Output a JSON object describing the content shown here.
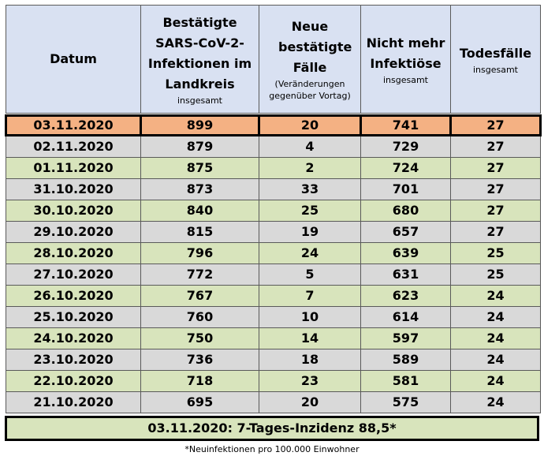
{
  "headers": {
    "date": {
      "main": "Datum"
    },
    "confirmed": {
      "main": "Bestätigte SARS-CoV-2-Infektionen im Landkreis",
      "sub": "insgesamt"
    },
    "new_cases": {
      "main": "Neue bestätigte Fälle",
      "sub": "(Veränderungen gegenüber Vortag)"
    },
    "recovered": {
      "main": "Nicht mehr Infektiöse",
      "sub": "insgesamt"
    },
    "deaths": {
      "main": "Todesfälle",
      "sub": "insgesamt"
    }
  },
  "rows": [
    {
      "date": "03.11.2020",
      "confirmed": "899",
      "new": "20",
      "recovered": "741",
      "deaths": "27"
    },
    {
      "date": "02.11.2020",
      "confirmed": "879",
      "new": "4",
      "recovered": "729",
      "deaths": "27"
    },
    {
      "date": "01.11.2020",
      "confirmed": "875",
      "new": "2",
      "recovered": "724",
      "deaths": "27"
    },
    {
      "date": "31.10.2020",
      "confirmed": "873",
      "new": "33",
      "recovered": "701",
      "deaths": "27"
    },
    {
      "date": "30.10.2020",
      "confirmed": "840",
      "new": "25",
      "recovered": "680",
      "deaths": "27"
    },
    {
      "date": "29.10.2020",
      "confirmed": "815",
      "new": "19",
      "recovered": "657",
      "deaths": "27"
    },
    {
      "date": "28.10.2020",
      "confirmed": "796",
      "new": "24",
      "recovered": "639",
      "deaths": "25"
    },
    {
      "date": "27.10.2020",
      "confirmed": "772",
      "new": "5",
      "recovered": "631",
      "deaths": "25"
    },
    {
      "date": "26.10.2020",
      "confirmed": "767",
      "new": "7",
      "recovered": "623",
      "deaths": "24"
    },
    {
      "date": "25.10.2020",
      "confirmed": "760",
      "new": "10",
      "recovered": "614",
      "deaths": "24"
    },
    {
      "date": "24.10.2020",
      "confirmed": "750",
      "new": "14",
      "recovered": "597",
      "deaths": "24"
    },
    {
      "date": "23.10.2020",
      "confirmed": "736",
      "new": "18",
      "recovered": "589",
      "deaths": "24"
    },
    {
      "date": "22.10.2020",
      "confirmed": "718",
      "new": "23",
      "recovered": "581",
      "deaths": "24"
    },
    {
      "date": "21.10.2020",
      "confirmed": "695",
      "new": "20",
      "recovered": "575",
      "deaths": "24"
    }
  ],
  "footer": "03.11.2020: 7-Tages-Inzidenz 88,5*",
  "note": "*Neuinfektionen pro 100.000 Einwohner",
  "colors": {
    "header": "#d9e1f2",
    "highlight": "#f4b183",
    "gray": "#d9d9d9",
    "green": "#d8e4bc"
  }
}
